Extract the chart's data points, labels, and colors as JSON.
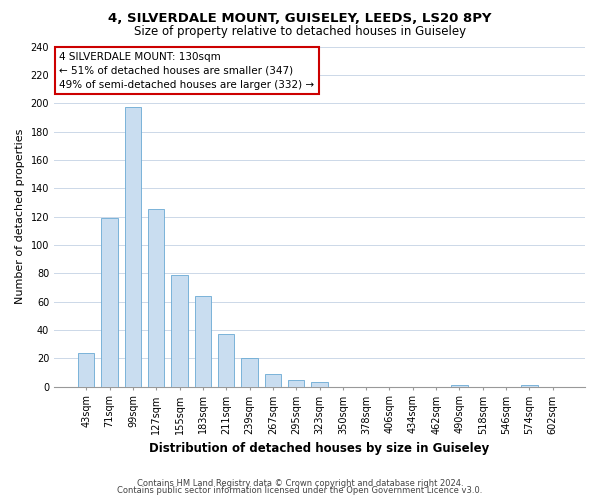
{
  "title": "4, SILVERDALE MOUNT, GUISELEY, LEEDS, LS20 8PY",
  "subtitle": "Size of property relative to detached houses in Guiseley",
  "xlabel": "Distribution of detached houses by size in Guiseley",
  "ylabel": "Number of detached properties",
  "bin_labels": [
    "43sqm",
    "71sqm",
    "99sqm",
    "127sqm",
    "155sqm",
    "183sqm",
    "211sqm",
    "239sqm",
    "267sqm",
    "295sqm",
    "323sqm",
    "350sqm",
    "378sqm",
    "406sqm",
    "434sqm",
    "462sqm",
    "490sqm",
    "518sqm",
    "546sqm",
    "574sqm",
    "602sqm"
  ],
  "bar_values": [
    24,
    119,
    197,
    125,
    79,
    64,
    37,
    20,
    9,
    5,
    3,
    0,
    0,
    0,
    0,
    0,
    1,
    0,
    0,
    1,
    0
  ],
  "bar_color": "#c9ddf0",
  "bar_edge_color": "#6aaad4",
  "annotation_box_text": "4 SILVERDALE MOUNT: 130sqm\n← 51% of detached houses are smaller (347)\n49% of semi-detached houses are larger (332) →",
  "annotation_box_color": "#ffffff",
  "annotation_box_edge_color": "#cc0000",
  "ylim": [
    0,
    240
  ],
  "yticks": [
    0,
    20,
    40,
    60,
    80,
    100,
    120,
    140,
    160,
    180,
    200,
    220,
    240
  ],
  "footer_line1": "Contains HM Land Registry data © Crown copyright and database right 2024.",
  "footer_line2": "Contains public sector information licensed under the Open Government Licence v3.0.",
  "background_color": "#ffffff",
  "grid_color": "#ccd8e8",
  "title_fontsize": 9.5,
  "subtitle_fontsize": 8.5,
  "xlabel_fontsize": 8.5,
  "ylabel_fontsize": 8,
  "tick_fontsize": 7,
  "footer_fontsize": 6,
  "ann_fontsize": 7.5
}
